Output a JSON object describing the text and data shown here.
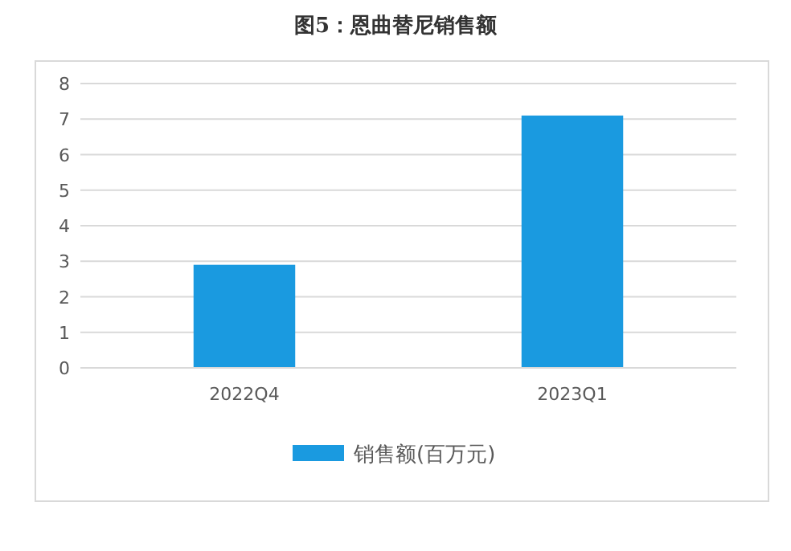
{
  "chart_data": {
    "type": "bar",
    "title": "图5：恩曲替尼销售额",
    "categories": [
      "2022Q4",
      "2023Q1"
    ],
    "series": [
      {
        "name": "销售额(百万元)",
        "color": "#1a9ae0",
        "values": [
          2.9,
          7.1
        ]
      }
    ],
    "ylim": [
      0,
      8
    ],
    "yticks": [
      0,
      1,
      2,
      3,
      4,
      5,
      6,
      7,
      8
    ],
    "grid": "y",
    "legend": "bottom"
  }
}
